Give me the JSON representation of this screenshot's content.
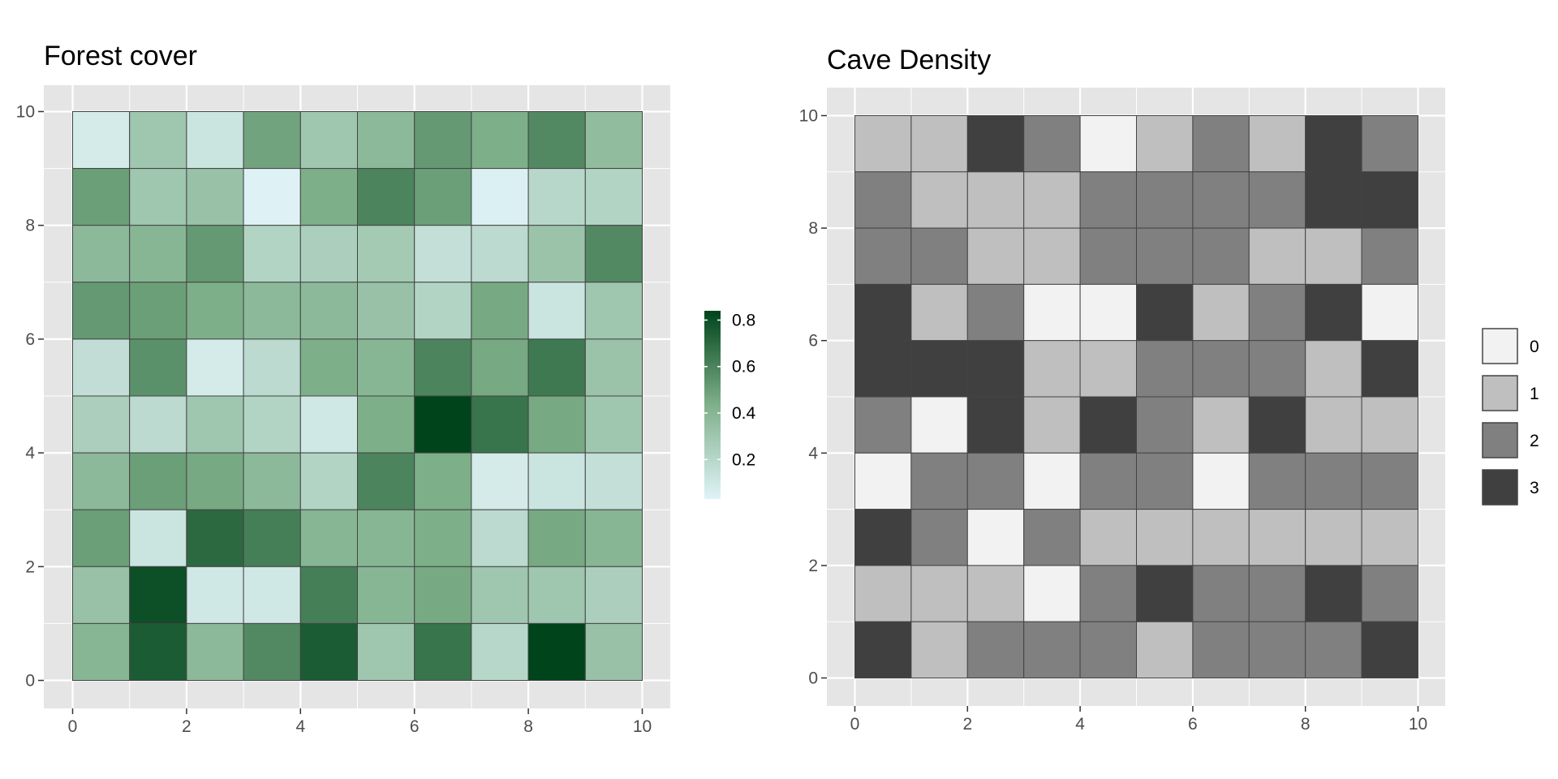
{
  "colors": {
    "panel": "#e5e5e5",
    "grid": "#ffffff",
    "tile_border": "#444444",
    "forest_low": "#e0f3f8",
    "forest_mid": "#7fb08a",
    "forest_high": "#00441b",
    "cave": [
      "#f2f2f2",
      "#bfbfbf",
      "#808080",
      "#404040"
    ]
  },
  "chart_data": [
    {
      "type": "heatmap",
      "title": "Forest cover",
      "xlabel": "",
      "ylabel": "",
      "xlim": [
        0,
        10
      ],
      "ylim": [
        0,
        10
      ],
      "x_ticks": [
        "0",
        "2",
        "4",
        "6",
        "8",
        "10"
      ],
      "y_ticks": [
        "0",
        "2",
        "4",
        "6",
        "8",
        "10"
      ],
      "grid": true,
      "legend": {
        "type": "colorbar",
        "placement": "right",
        "ticks": [
          "0.2",
          "0.4",
          "0.6",
          "0.8"
        ],
        "range": [
          0.03,
          0.84
        ]
      },
      "rows_top_to_bottom": [
        [
          0.08,
          0.3,
          0.12,
          0.48,
          0.3,
          0.38,
          0.52,
          0.44,
          0.58,
          0.36
        ],
        [
          0.5,
          0.3,
          0.33,
          0.04,
          0.44,
          0.6,
          0.5,
          0.05,
          0.2,
          0.22
        ],
        [
          0.38,
          0.4,
          0.52,
          0.22,
          0.25,
          0.28,
          0.15,
          0.18,
          0.32,
          0.58
        ],
        [
          0.52,
          0.5,
          0.44,
          0.38,
          0.38,
          0.33,
          0.22,
          0.46,
          0.12,
          0.3
        ],
        [
          0.16,
          0.55,
          0.08,
          0.18,
          0.44,
          0.4,
          0.6,
          0.46,
          0.64,
          0.32
        ],
        [
          0.25,
          0.18,
          0.3,
          0.22,
          0.1,
          0.44,
          0.84,
          0.66,
          0.46,
          0.3
        ],
        [
          0.38,
          0.5,
          0.46,
          0.38,
          0.22,
          0.6,
          0.44,
          0.08,
          0.12,
          0.15
        ],
        [
          0.5,
          0.12,
          0.7,
          0.62,
          0.4,
          0.4,
          0.44,
          0.18,
          0.46,
          0.4
        ],
        [
          0.33,
          0.8,
          0.1,
          0.1,
          0.62,
          0.4,
          0.46,
          0.3,
          0.3,
          0.25
        ],
        [
          0.4,
          0.75,
          0.38,
          0.58,
          0.75,
          0.3,
          0.66,
          0.2,
          0.84,
          0.33
        ]
      ]
    },
    {
      "type": "heatmap",
      "title": "Cave Density",
      "xlabel": "",
      "ylabel": "",
      "xlim": [
        0,
        10
      ],
      "ylim": [
        0,
        10
      ],
      "x_ticks": [
        "0",
        "2",
        "4",
        "6",
        "8",
        "10"
      ],
      "y_ticks": [
        "0",
        "2",
        "4",
        "6",
        "8",
        "10"
      ],
      "grid": true,
      "legend": {
        "type": "discrete",
        "placement": "right",
        "levels": [
          "0",
          "1",
          "2",
          "3"
        ]
      },
      "rows_top_to_bottom": [
        [
          1,
          1,
          3,
          2,
          0,
          1,
          2,
          1,
          3,
          2
        ],
        [
          2,
          1,
          1,
          1,
          2,
          2,
          2,
          2,
          3,
          3
        ],
        [
          2,
          2,
          1,
          1,
          2,
          2,
          2,
          1,
          1,
          2
        ],
        [
          3,
          1,
          2,
          0,
          0,
          3,
          1,
          2,
          3,
          0
        ],
        [
          3,
          3,
          3,
          1,
          1,
          2,
          2,
          2,
          1,
          3
        ],
        [
          2,
          0,
          3,
          1,
          3,
          2,
          1,
          3,
          1,
          1
        ],
        [
          0,
          2,
          2,
          0,
          2,
          2,
          0,
          2,
          2,
          2
        ],
        [
          3,
          2,
          0,
          2,
          1,
          1,
          1,
          1,
          1,
          1
        ],
        [
          1,
          1,
          1,
          0,
          2,
          3,
          2,
          2,
          3,
          2
        ],
        [
          3,
          1,
          2,
          2,
          2,
          1,
          2,
          2,
          2,
          3
        ]
      ]
    }
  ]
}
